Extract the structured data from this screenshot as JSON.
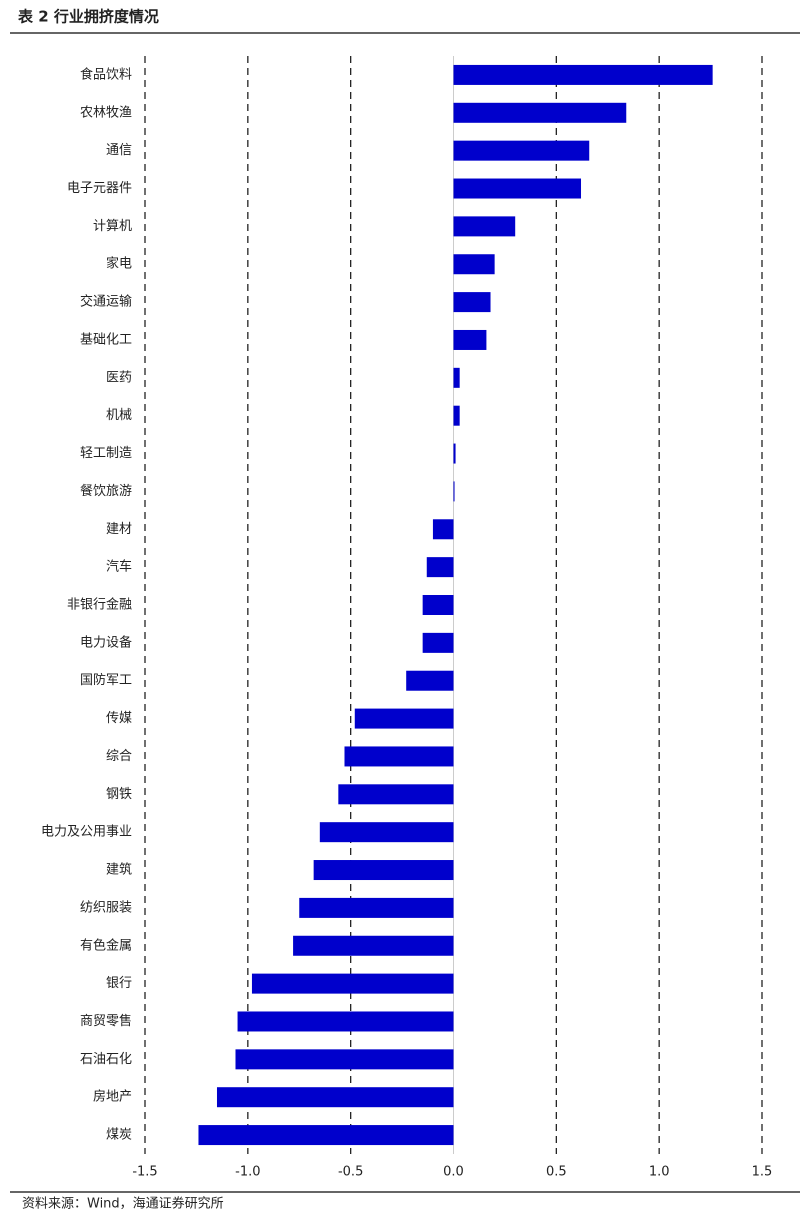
{
  "chart_data": {
    "type": "barh",
    "title": "表 2 行业拥挤度情况",
    "source": "资料来源：Wind，海通证券研究所",
    "categories": [
      "食品饮料",
      "农林牧渔",
      "通信",
      "电子元器件",
      "计算机",
      "家电",
      "交通运输",
      "基础化工",
      "医药",
      "机械",
      "轻工制造",
      "餐饮旅游",
      "建材",
      "汽车",
      "非银行金融",
      "电力设备",
      "国防军工",
      "传媒",
      "综合",
      "钢铁",
      "电力及公用事业",
      "建筑",
      "纺织服装",
      "有色金属",
      "银行",
      "商贸零售",
      "石油石化",
      "房地产",
      "煤炭"
    ],
    "values": [
      1.26,
      0.84,
      0.66,
      0.62,
      0.3,
      0.2,
      0.18,
      0.16,
      0.03,
      0.03,
      0.01,
      0.005,
      -0.1,
      -0.13,
      -0.15,
      -0.15,
      -0.23,
      -0.48,
      -0.53,
      -0.56,
      -0.65,
      -0.68,
      -0.75,
      -0.78,
      -0.98,
      -1.05,
      -1.06,
      -1.15,
      -1.24
    ],
    "color": "#0000cc",
    "xlim": [
      -1.5,
      1.5
    ],
    "xticks": [
      -1.5,
      {
        "value": -1.0,
        "label": "-1.0"
      },
      -0.5,
      {
        "value": 0.0,
        "label": "0.0"
      },
      0.5,
      {
        "value": 1.0,
        "label": "1.0"
      },
      1.5
    ],
    "grid": true
  }
}
